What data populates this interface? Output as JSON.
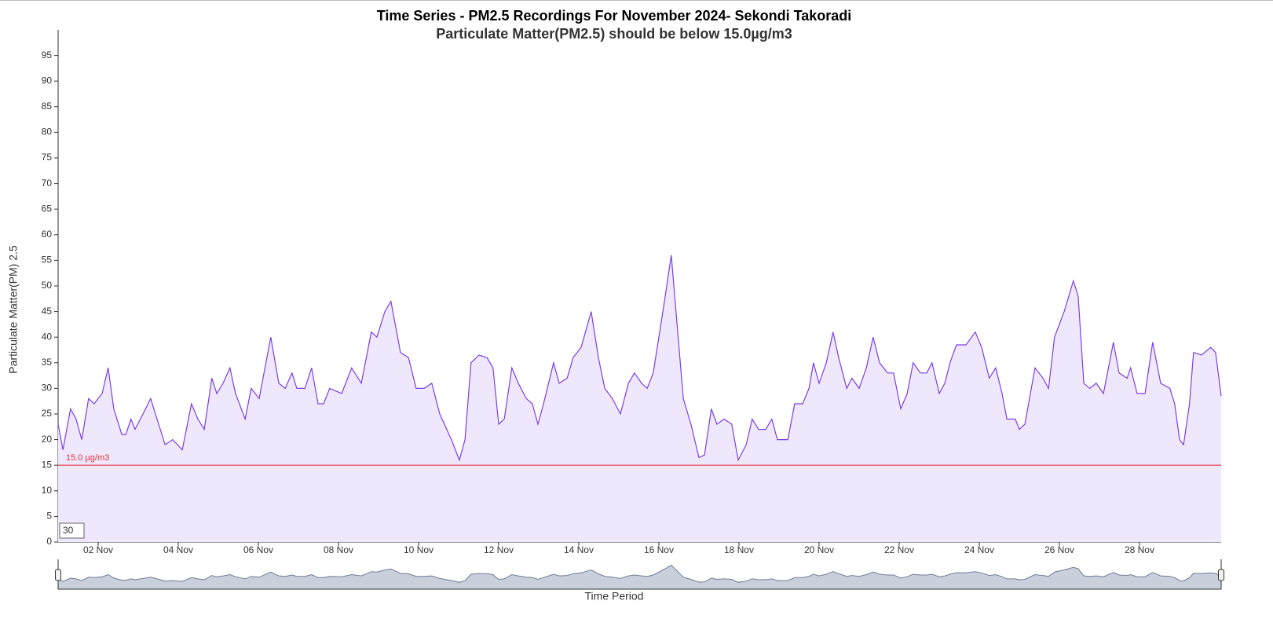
{
  "chart_data": {
    "type": "area",
    "title": "Time Series - PM2.5 Recordings For November 2024- Sekondi Takoradi",
    "subtitle": "Particulate Matter(PM2.5) should be below 15.0µg/m3",
    "subtitle_color": "#ff0000",
    "x_label": "Time Period",
    "y_label": "Particulate Matter(PM) 2.5",
    "xlim": [
      1,
      30.04
    ],
    "ylim": [
      0,
      100
    ],
    "yticks": [
      0,
      5,
      10,
      15,
      20,
      25,
      30,
      35,
      40,
      45,
      50,
      55,
      60,
      65,
      70,
      75,
      80,
      85,
      90,
      95
    ],
    "xticks": [
      {
        "value": 2,
        "label": "02 Nov"
      },
      {
        "value": 4,
        "label": "04 Nov"
      },
      {
        "value": 6,
        "label": "06 Nov"
      },
      {
        "value": 8,
        "label": "08 Nov"
      },
      {
        "value": 10,
        "label": "10 Nov"
      },
      {
        "value": 12,
        "label": "12 Nov"
      },
      {
        "value": 14,
        "label": "14 Nov"
      },
      {
        "value": 16,
        "label": "16 Nov"
      },
      {
        "value": 18,
        "label": "18 Nov"
      },
      {
        "value": 20,
        "label": "20 Nov"
      },
      {
        "value": 22,
        "label": "22 Nov"
      },
      {
        "value": 24,
        "label": "24 Nov"
      },
      {
        "value": 26,
        "label": "26 Nov"
      },
      {
        "value": 28,
        "label": "28 Nov"
      }
    ],
    "threshold": {
      "value": 15,
      "label": "15.0 µg/m3",
      "color": "#e8303a"
    },
    "rolling_window": "30",
    "color": "#7b3fe4",
    "fill_color": "#efe8fc",
    "x": [
      1.0,
      1.12,
      1.31,
      1.45,
      1.59,
      1.76,
      1.9,
      2.0,
      2.1,
      2.25,
      2.39,
      2.59,
      2.69,
      2.82,
      2.92,
      3.12,
      3.31,
      3.47,
      3.67,
      3.86,
      4.1,
      4.33,
      4.49,
      4.65,
      4.84,
      4.96,
      5.12,
      5.29,
      5.43,
      5.67,
      5.82,
      6.02,
      6.31,
      6.51,
      6.67,
      6.84,
      6.96,
      7.16,
      7.33,
      7.49,
      7.63,
      7.78,
      8.08,
      8.33,
      8.57,
      8.82,
      8.96,
      9.16,
      9.31,
      9.55,
      9.75,
      9.94,
      10.14,
      10.33,
      10.53,
      10.82,
      11.02,
      11.16,
      11.31,
      11.51,
      11.71,
      11.86,
      12.0,
      12.14,
      12.33,
      12.49,
      12.69,
      12.84,
      12.98,
      13.12,
      13.37,
      13.51,
      13.71,
      13.86,
      14.06,
      14.31,
      14.49,
      14.65,
      14.84,
      15.04,
      15.24,
      15.39,
      15.57,
      15.71,
      15.86,
      16.12,
      16.31,
      16.45,
      16.61,
      16.8,
      17.0,
      17.14,
      17.31,
      17.45,
      17.63,
      17.82,
      17.98,
      18.18,
      18.33,
      18.49,
      18.67,
      18.82,
      18.96,
      19.22,
      19.39,
      19.59,
      19.75,
      19.86,
      20.0,
      20.18,
      20.35,
      20.49,
      20.69,
      20.82,
      21.0,
      21.18,
      21.35,
      21.51,
      21.71,
      21.86,
      22.04,
      22.2,
      22.35,
      22.53,
      22.69,
      22.82,
      23.0,
      23.14,
      23.27,
      23.43,
      23.67,
      23.9,
      24.06,
      24.25,
      24.41,
      24.57,
      24.69,
      24.9,
      25.0,
      25.14,
      25.39,
      25.59,
      25.73,
      25.88,
      26.12,
      26.35,
      26.47,
      26.61,
      26.76,
      26.92,
      27.1,
      27.35,
      27.49,
      27.69,
      27.78,
      27.94,
      28.14,
      28.33,
      28.53,
      28.76,
      28.88,
      29.0,
      29.1,
      29.25,
      29.35,
      29.55,
      29.78,
      29.9,
      30.04
    ],
    "values": [
      23,
      18,
      26,
      24,
      20,
      28,
      27,
      28,
      29,
      34,
      26,
      21,
      21,
      24,
      22,
      25,
      28,
      24,
      19,
      20,
      18,
      27,
      24,
      22,
      32,
      29,
      31,
      34,
      29,
      24,
      30,
      28,
      40,
      31,
      30,
      33,
      30,
      30,
      34,
      27,
      27,
      30,
      29,
      34,
      31,
      41,
      40,
      45,
      47,
      37,
      36,
      30,
      30,
      31,
      25,
      20,
      16,
      20,
      35,
      36.5,
      36,
      34,
      23,
      24,
      34,
      31,
      28,
      27,
      23,
      27,
      35,
      31,
      32,
      36,
      38,
      45,
      36,
      30,
      28,
      25,
      31,
      33,
      31,
      30,
      33,
      46,
      56,
      43,
      28,
      23,
      16.5,
      17,
      26,
      23,
      24,
      23,
      16,
      19,
      24,
      22,
      22,
      24,
      20,
      20,
      27,
      27,
      30,
      35,
      31,
      35,
      41,
      36,
      30,
      32,
      30,
      34,
      40,
      35,
      33,
      33,
      26,
      29,
      35,
      33,
      33,
      35,
      29,
      31,
      35,
      38.5,
      38.5,
      41,
      38,
      32,
      34,
      29,
      24,
      24,
      22,
      23,
      34,
      32,
      30,
      40,
      45,
      51,
      48,
      31,
      30,
      31,
      29,
      39,
      33,
      32,
      34,
      29,
      29,
      39,
      31,
      30,
      27,
      20,
      19,
      27,
      37,
      36.5,
      38,
      37,
      28.5
    ]
  }
}
